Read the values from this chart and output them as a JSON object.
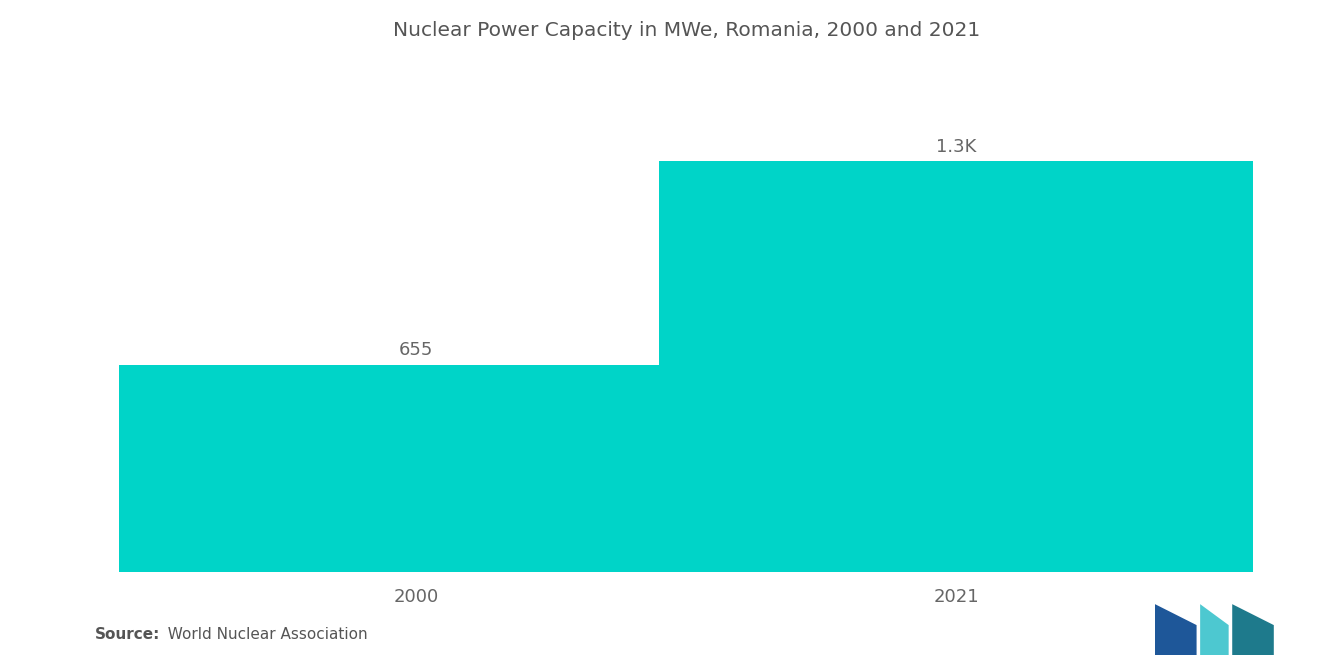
{
  "title": "Nuclear Power Capacity in MWe, Romania, 2000 and 2021",
  "categories": [
    "2000",
    "2021"
  ],
  "values": [
    655,
    1300
  ],
  "value_labels": [
    "655",
    "1.3K"
  ],
  "bar_color": "#00D4C8",
  "background_color": "#FFFFFF",
  "title_fontsize": 14.5,
  "label_fontsize": 13,
  "tick_fontsize": 13,
  "source_bold": "Source:",
  "source_rest": "  World Nuclear Association",
  "ylim": [
    0,
    1600
  ],
  "bar_width": 0.55,
  "x_positions": [
    0.3,
    0.8
  ],
  "x_lim": [
    0.0,
    1.1
  ]
}
